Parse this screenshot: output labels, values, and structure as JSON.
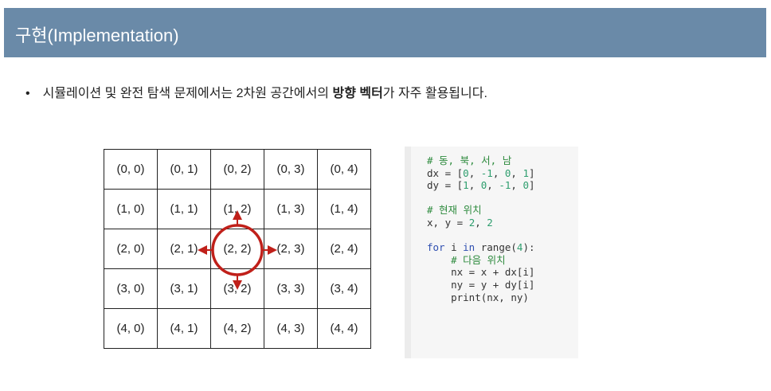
{
  "header": {
    "title": "구현(Implementation)"
  },
  "bullet": {
    "prefix": "시뮬레이션 및 완전 탐색 문제에서는 2차원 공간에서의 ",
    "bold": "방향 벡터",
    "suffix": "가 자주 활용됩니다."
  },
  "grid": {
    "rows": [
      [
        "(0, 0)",
        "(0, 1)",
        "(0, 2)",
        "(0, 3)",
        "(0, 4)"
      ],
      [
        "(1, 0)",
        "(1, 1)",
        "(1, 2)",
        "(1, 3)",
        "(1, 4)"
      ],
      [
        "(2, 0)",
        "(2, 1)",
        "(2, 2)",
        "(2, 3)",
        "(2, 4)"
      ],
      [
        "(3, 0)",
        "(3, 1)",
        "(3, 2)",
        "(3, 3)",
        "(3, 4)"
      ],
      [
        "(4, 0)",
        "(4, 1)",
        "(4, 2)",
        "(4, 3)",
        "(4, 4)"
      ]
    ],
    "highlight_color": "#c0201a"
  },
  "code": {
    "lines": [
      [
        [
          "c",
          "# 동, 북, 서, 남"
        ]
      ],
      [
        [
          "",
          "dx = ["
        ],
        [
          "n",
          "0"
        ],
        [
          "",
          ", "
        ],
        [
          "n",
          "-1"
        ],
        [
          "",
          ", "
        ],
        [
          "n",
          "0"
        ],
        [
          "",
          ", "
        ],
        [
          "n",
          "1"
        ],
        [
          "",
          "]"
        ]
      ],
      [
        [
          "",
          "dy = ["
        ],
        [
          "n",
          "1"
        ],
        [
          "",
          ", "
        ],
        [
          "n",
          "0"
        ],
        [
          "",
          ", "
        ],
        [
          "n",
          "-1"
        ],
        [
          "",
          ", "
        ],
        [
          "n",
          "0"
        ],
        [
          "",
          "]"
        ]
      ],
      [
        [
          "",
          ""
        ]
      ],
      [
        [
          "c",
          "# 현재 위치"
        ]
      ],
      [
        [
          "",
          "x, y = "
        ],
        [
          "n",
          "2"
        ],
        [
          "",
          ", "
        ],
        [
          "n",
          "2"
        ]
      ],
      [
        [
          "",
          ""
        ]
      ],
      [
        [
          "k",
          "for"
        ],
        [
          "",
          " i "
        ],
        [
          "k",
          "in"
        ],
        [
          "",
          " range("
        ],
        [
          "n",
          "4"
        ],
        [
          "",
          "):"
        ]
      ],
      [
        [
          "c",
          "    # 다음 위치"
        ]
      ],
      [
        [
          "",
          "    nx = x + dx[i]"
        ]
      ],
      [
        [
          "",
          "    ny = y + dy[i]"
        ]
      ],
      [
        [
          "",
          "    print(nx, ny)"
        ]
      ]
    ]
  }
}
